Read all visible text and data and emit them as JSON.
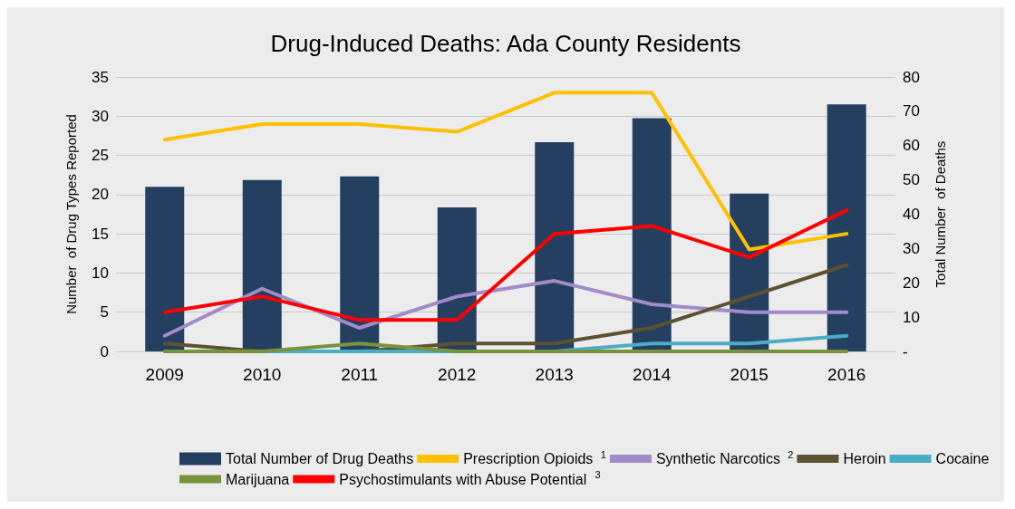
{
  "chart_data": {
    "type": "line",
    "title": "Drug-Induced Deaths: Ada County Residents",
    "ylabel": "Number  of Drug Types Reported",
    "y2label": "Total Number  of Deaths",
    "categories": [
      "2009",
      "2010",
      "2011",
      "2012",
      "2013",
      "2014",
      "2015",
      "2016"
    ],
    "series": [
      {
        "name": "Total Number of Drug Deaths",
        "type": "bar",
        "axis": "y2",
        "color": "#243f60",
        "values": [
          48,
          50,
          51,
          42,
          61,
          68,
          46,
          72
        ]
      },
      {
        "name": "Prescription Opioids $^{1}$",
        "color": "#ffc000",
        "values": [
          27,
          29,
          29,
          28,
          33,
          33,
          13,
          15
        ]
      },
      {
        "name": "Synthetic Narcotics $^{2}$",
        "color": "#a08cc8",
        "values": [
          2,
          8,
          3,
          7,
          9,
          6,
          5,
          5
        ]
      },
      {
        "name": "Heroin",
        "color": "#5c5232",
        "values": [
          1,
          0,
          0,
          1,
          1,
          3,
          7,
          11
        ]
      },
      {
        "name": "Cocaine",
        "color": "#4bacc6",
        "values": [
          0,
          0,
          0,
          0,
          0,
          1,
          1,
          2
        ]
      },
      {
        "name": "Marijuana",
        "color": "#77933c",
        "values": [
          0,
          0,
          1,
          0,
          0,
          0,
          0,
          0
        ]
      },
      {
        "name": "Psychostimulants with Abuse Potential $^{3}$",
        "color": "#ff0000",
        "values": [
          5,
          7,
          4,
          4,
          15,
          16,
          12,
          18
        ]
      }
    ],
    "ylim": [
      0,
      35
    ],
    "yticks": [
      0,
      5,
      10,
      15,
      20,
      25,
      30,
      35
    ],
    "y2lim": [
      0,
      80
    ],
    "y2ticks": [
      {
        "value": 0,
        "label": "-"
      },
      10,
      20,
      30,
      40,
      50,
      60,
      70,
      80
    ],
    "grid": "y",
    "legend": "bottom",
    "marker": "none",
    "line_style": "solid"
  }
}
